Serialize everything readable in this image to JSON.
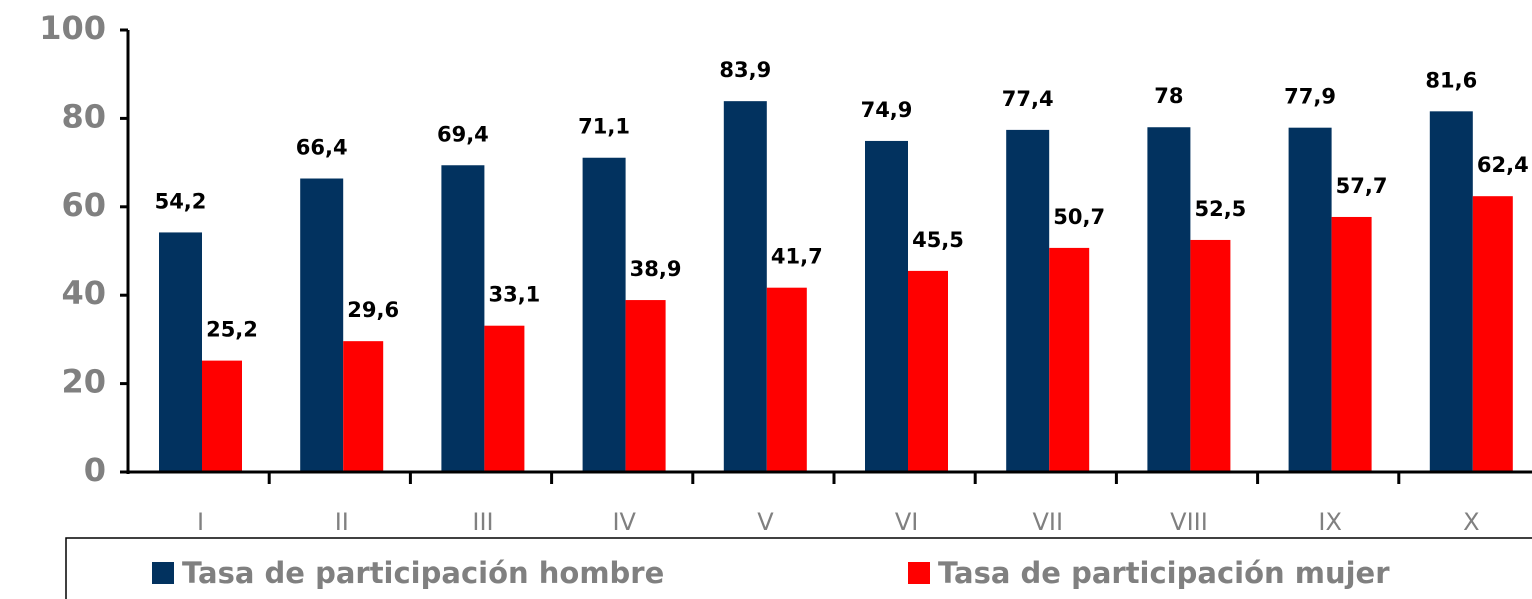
{
  "chart_data": {
    "type": "bar",
    "categories": [
      "I",
      "II",
      "III",
      "IV",
      "V",
      "VI",
      "VII",
      "VIII",
      "IX",
      "X"
    ],
    "series": [
      {
        "name": "Tasa de participación hombre",
        "color": "#02325f",
        "values": [
          54.2,
          66.4,
          69.4,
          71.1,
          83.9,
          74.9,
          77.4,
          78,
          77.9,
          81.6
        ],
        "value_labels": [
          "54,2",
          "66,4",
          "69,4",
          "71,1",
          "83,9",
          "74,9",
          "77,4",
          "78",
          "77,9",
          "81,6"
        ]
      },
      {
        "name": "Tasa de participación mujer",
        "color": "#ff0000",
        "values": [
          25.2,
          29.6,
          33.1,
          38.9,
          41.7,
          45.5,
          50.7,
          52.5,
          57.7,
          62.4
        ],
        "value_labels": [
          "25,2",
          "29,6",
          "33,1",
          "38,9",
          "41,7",
          "45,5",
          "50,7",
          "52,5",
          "57,7",
          "62,4"
        ]
      }
    ],
    "ylim": [
      0,
      100
    ],
    "yticks": [
      0,
      20,
      40,
      60,
      80,
      100
    ],
    "grid": false,
    "legend": "bottom"
  }
}
